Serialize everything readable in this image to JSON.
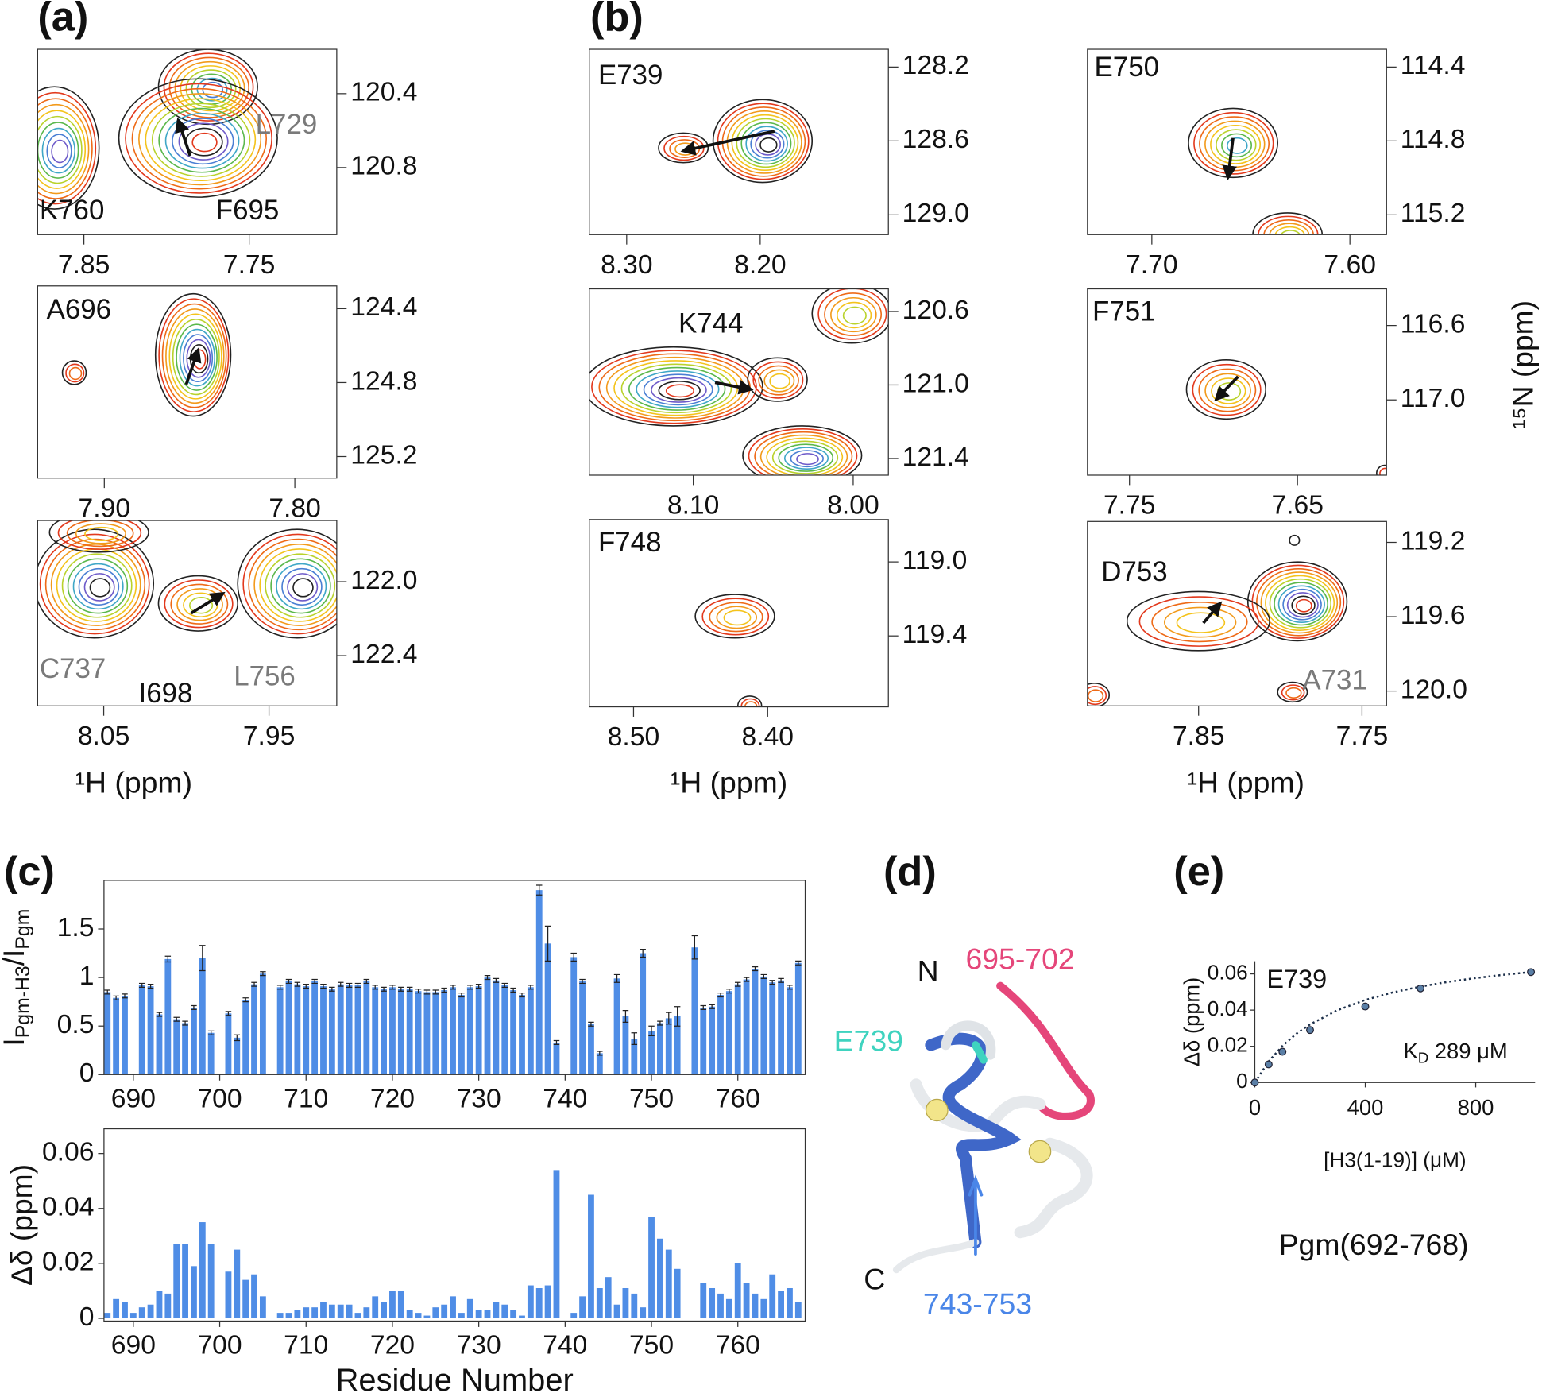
{
  "panel_labels": [
    "(a)",
    "(b)",
    "(c)",
    "(d)",
    "(e)"
  ],
  "h_axis_labels": [
    "¹H (ppm)",
    "¹H (ppm)",
    "¹H (ppm)"
  ],
  "n_axis_label": "¹⁵N (ppm)",
  "structure": {
    "n": "N",
    "c": "C",
    "region1": "695-702",
    "residue": "E739",
    "region2": "743-753",
    "colors": {
      "region1": "#e5467a",
      "residue": "#3fd3bf",
      "region2": "#4a86e8"
    }
  },
  "caption": "Pgm(692-768)",
  "chart_data": [
    {
      "type": "spectrum",
      "xlim": [
        7.878,
        7.697
      ],
      "ylim": [
        120.16,
        121.163
      ],
      "xticks": [
        7.85,
        7.75
      ],
      "yticks": [
        120.4,
        120.8
      ],
      "annotations": [
        {
          "text": "K760",
          "color": "#111111"
        },
        {
          "text": "F695",
          "color": "#111111"
        },
        {
          "text": "L729",
          "color": "#7a7a7a"
        }
      ]
    },
    {
      "type": "spectrum",
      "xlim": [
        7.935,
        7.778
      ],
      "ylim": [
        124.277,
        125.317
      ],
      "xticks": [
        {
          "value": 7.9,
          "label": "7.90"
        },
        {
          "value": 7.8,
          "label": "7.80"
        }
      ],
      "yticks": [
        124.4,
        124.8,
        125.2
      ],
      "annotations": [
        {
          "text": "A696",
          "color": "#111111"
        }
      ]
    },
    {
      "type": "spectrum",
      "xlim": [
        8.09,
        7.909
      ],
      "ylim": [
        121.669,
        122.672
      ],
      "xticks": [
        8.05,
        7.95
      ],
      "yticks": [
        {
          "value": 122,
          "label": "122.0"
        },
        122.4
      ],
      "annotations": [
        {
          "text": "C737",
          "color": "#7a7a7a"
        },
        {
          "text": "I698",
          "color": "#111111"
        },
        {
          "text": "L756",
          "color": "#7a7a7a"
        }
      ]
    },
    {
      "type": "spectrum",
      "xlim": [
        8.328,
        8.104
      ],
      "ylim": [
        128.104,
        129.107
      ],
      "xticks": [
        {
          "value": 8.3,
          "label": "8.30"
        },
        {
          "value": 8.2,
          "label": "8.20"
        }
      ],
      "yticks": [
        128.2,
        128.6,
        {
          "value": 129,
          "label": "129.0"
        }
      ],
      "annotations": [
        {
          "text": "E739",
          "color": "#111111"
        }
      ]
    },
    {
      "type": "spectrum",
      "xlim": [
        8.165,
        7.978
      ],
      "ylim": [
        120.477,
        121.491
      ],
      "xticks": [
        {
          "value": 8.1,
          "label": "8.10"
        },
        {
          "value": 8,
          "label": "8.00"
        }
      ],
      "yticks": [
        120.6,
        {
          "value": 121,
          "label": "121.0"
        },
        121.4
      ],
      "annotations": [
        {
          "text": "K744",
          "color": "#111111"
        }
      ]
    },
    {
      "type": "spectrum",
      "xlim": [
        8.533,
        8.31
      ],
      "ylim": [
        118.771,
        119.784
      ],
      "xticks": [
        {
          "value": 8.5,
          "label": "8.50"
        },
        {
          "value": 8.4,
          "label": "8.40"
        }
      ],
      "yticks": [
        {
          "value": 119,
          "label": "119.0"
        },
        119.4
      ],
      "annotations": [
        {
          "text": "F748",
          "color": "#111111"
        }
      ]
    },
    {
      "type": "spectrum",
      "xlim": [
        7.7325,
        7.5815
      ],
      "ylim": [
        114.304,
        115.307
      ],
      "xticks": [
        {
          "value": 7.7,
          "label": "7.70"
        },
        {
          "value": 7.6,
          "label": "7.60"
        }
      ],
      "yticks": [
        114.4,
        114.8,
        115.2
      ],
      "annotations": [
        {
          "text": "E750",
          "color": "#111111"
        }
      ]
    },
    {
      "type": "spectrum",
      "xlim": [
        7.775,
        7.597
      ],
      "ylim": [
        116.403,
        117.405
      ],
      "xticks": [
        7.75,
        7.65
      ],
      "yticks": [
        116.6,
        {
          "value": 117,
          "label": "117.0"
        }
      ],
      "annotations": [
        {
          "text": "F751",
          "color": "#111111"
        }
      ]
    },
    {
      "type": "spectrum",
      "xlim": [
        7.918,
        7.735
      ],
      "ylim": [
        119.088,
        120.08
      ],
      "xticks": [
        7.85,
        7.75
      ],
      "yticks": [
        119.2,
        119.6,
        {
          "value": 120,
          "label": "120.0"
        }
      ],
      "annotations": [
        {
          "text": "D753",
          "color": "#111111"
        },
        {
          "text": "A731",
          "color": "#7a7a7a"
        }
      ]
    },
    {
      "type": "bar",
      "color": "#4f8de6",
      "y_label": {
        "main": "I",
        "sub": "Pgm-H3",
        "mid": "/I",
        "sub2": "Pgm"
      },
      "xlim": [
        686.6,
        767.8
      ],
      "xticks": [
        690,
        700,
        710,
        720,
        730,
        740,
        750,
        760
      ],
      "ylim": [
        0,
        2
      ],
      "yticks": [
        0,
        0.5,
        1,
        1.5
      ],
      "x": [
        687,
        688,
        689,
        690,
        691,
        692,
        693,
        694,
        695,
        696,
        697,
        698,
        699,
        700,
        701,
        702,
        703,
        704,
        705,
        706,
        707,
        708,
        709,
        710,
        711,
        712,
        713,
        714,
        715,
        716,
        717,
        718,
        719,
        720,
        721,
        722,
        723,
        724,
        725,
        726,
        727,
        728,
        729,
        730,
        731,
        732,
        733,
        734,
        735,
        736,
        737,
        738,
        739,
        740,
        741,
        742,
        743,
        744,
        745,
        746,
        747,
        748,
        749,
        750,
        751,
        752,
        753,
        754,
        755,
        756,
        757,
        758,
        759,
        760,
        761,
        762,
        763,
        764,
        765,
        766,
        767
      ],
      "values": [
        0.85,
        0.79,
        0.81,
        null,
        0.92,
        0.91,
        0.62,
        1.19,
        0.57,
        0.53,
        0.69,
        1.2,
        0.43,
        null,
        0.63,
        0.38,
        0.77,
        0.93,
        1.04,
        null,
        0.9,
        0.96,
        0.93,
        0.91,
        0.96,
        0.91,
        0.88,
        0.93,
        0.92,
        0.92,
        0.96,
        0.9,
        0.88,
        0.9,
        0.88,
        0.88,
        0.86,
        0.85,
        0.85,
        0.87,
        0.9,
        0.82,
        0.9,
        0.91,
        1.0,
        0.97,
        0.92,
        0.87,
        0.82,
        0.9,
        1.9,
        1.35,
        0.33,
        null,
        1.21,
        0.96,
        0.52,
        0.22,
        null,
        0.99,
        0.6,
        0.37,
        1.25,
        0.45,
        0.53,
        0.58,
        0.6,
        null,
        1.31,
        0.69,
        0.7,
        0.82,
        0.86,
        0.93,
        0.98,
        1.09,
        1.01,
        0.95,
        0.97,
        0.9,
        1.15
      ],
      "errors": [
        0.02,
        0.02,
        0.02,
        null,
        0.02,
        0.02,
        0.02,
        0.03,
        0.02,
        0.02,
        0.02,
        0.13,
        0.02,
        null,
        0.02,
        0.03,
        0.02,
        0.02,
        0.02,
        null,
        0.02,
        0.02,
        0.02,
        0.02,
        0.02,
        0.02,
        0.02,
        0.02,
        0.02,
        0.02,
        0.02,
        0.02,
        0.02,
        0.02,
        0.02,
        0.02,
        0.02,
        0.02,
        0.02,
        0.02,
        0.02,
        0.02,
        0.02,
        0.02,
        0.02,
        0.02,
        0.02,
        0.02,
        0.02,
        0.02,
        0.05,
        0.18,
        0.02,
        null,
        0.04,
        0.02,
        0.02,
        0.02,
        null,
        0.04,
        0.06,
        0.06,
        0.04,
        0.05,
        0.02,
        0.06,
        0.1,
        null,
        0.12,
        0.02,
        0.02,
        0.02,
        0.02,
        0.02,
        0.02,
        0.02,
        0.02,
        0.02,
        0.02,
        0.02,
        0.02
      ]
    },
    {
      "type": "bar",
      "color": "#4f8de6",
      "y_label": "Δδ (ppm)",
      "x_label": "Residue Number",
      "xlim": [
        686.6,
        767.8
      ],
      "xticks": [
        690,
        700,
        710,
        720,
        730,
        740,
        750,
        760
      ],
      "ylim": [
        -0.001,
        0.069
      ],
      "yticks": [
        0,
        0.02,
        0.04,
        0.06
      ],
      "x": [
        687,
        688,
        689,
        690,
        691,
        692,
        693,
        694,
        695,
        696,
        697,
        698,
        699,
        700,
        701,
        702,
        703,
        704,
        705,
        706,
        707,
        708,
        709,
        710,
        711,
        712,
        713,
        714,
        715,
        716,
        717,
        718,
        719,
        720,
        721,
        722,
        723,
        724,
        725,
        726,
        727,
        728,
        729,
        730,
        731,
        732,
        733,
        734,
        735,
        736,
        737,
        738,
        739,
        740,
        741,
        742,
        743,
        744,
        745,
        746,
        747,
        748,
        749,
        750,
        751,
        752,
        753,
        754,
        755,
        756,
        757,
        758,
        759,
        760,
        761,
        762,
        763,
        764,
        765,
        766,
        767
      ],
      "values": [
        0.002,
        0.007,
        0.006,
        0.002,
        0.004,
        0.005,
        0.01,
        0.009,
        0.027,
        0.027,
        0.019,
        0.035,
        0.027,
        null,
        0.017,
        0.025,
        0.014,
        0.016,
        0.008,
        null,
        0.002,
        0.002,
        0.003,
        0.004,
        0.004,
        0.006,
        0.005,
        0.005,
        0.005,
        0.002,
        0.004,
        0.008,
        0.006,
        0.01,
        0.01,
        0.003,
        0.002,
        0.001,
        0.004,
        0.005,
        0.008,
        0.002,
        0.007,
        0.003,
        0.003,
        0.006,
        0.005,
        0.003,
        0.001,
        0.012,
        0.011,
        0.012,
        0.054,
        null,
        0.002,
        0.008,
        0.045,
        0.011,
        0.015,
        0.005,
        0.011,
        0.009,
        0.004,
        0.037,
        0.029,
        0.025,
        0.018,
        null,
        null,
        0.013,
        0.011,
        0.009,
        0.007,
        0.02,
        0.013,
        0.009,
        0.007,
        0.016,
        0.01,
        0.011,
        0.006
      ]
    },
    {
      "type": "scatter",
      "annotation": "E739",
      "kd": {
        "main": "K",
        "sub": "D",
        "rest": "289 μM"
      },
      "x_label": "[H3(1-19)] (μM)",
      "y_label": "Δδ (ppm)",
      "xlim": [
        0,
        1015
      ],
      "xticks": [
        0,
        400,
        800
      ],
      "ylim": [
        0,
        0.067
      ],
      "yticks": [
        0,
        0.02,
        0.04,
        0.06
      ],
      "series": [
        {
          "kind": "points",
          "color": "#5a7fa6",
          "x": [
            0,
            50,
            100,
            200,
            400,
            600,
            1000
          ],
          "values": [
            0,
            0.01,
            0.017,
            0.029,
            0.042,
            0.052,
            0.061
          ]
        },
        {
          "kind": "fit",
          "color": "#1c2f4a",
          "line_style": "dotted",
          "x": [
            0,
            50,
            100,
            150,
            200,
            300,
            400,
            500,
            600,
            700,
            800,
            900,
            1000
          ],
          "values": [
            0,
            0.0116,
            0.0202,
            0.0269,
            0.0321,
            0.04,
            0.0456,
            0.0498,
            0.053,
            0.0556,
            0.0577,
            0.0595,
            0.061
          ]
        }
      ]
    }
  ]
}
